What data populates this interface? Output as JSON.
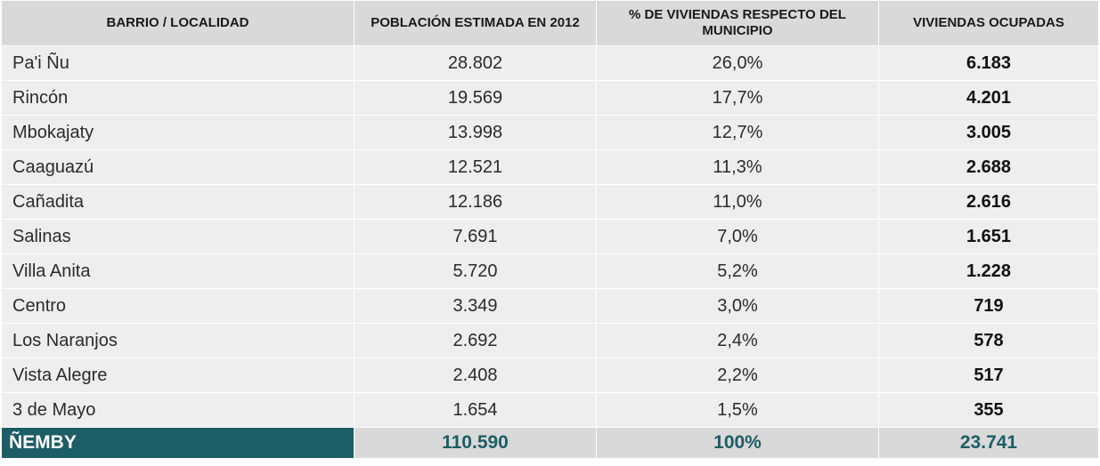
{
  "table": {
    "headers": [
      "BARRIO / LOCALIDAD",
      "POBLACIÓN ESTIMADA EN 2012",
      "% DE VIVIENDAS RESPECTO DEL MUNICIPIO",
      "VIVIENDAS OCUPADAS"
    ],
    "rows": [
      [
        "Pa'i Ñu",
        "28.802",
        "26,0%",
        "6.183"
      ],
      [
        "Rincón",
        "19.569",
        "17,7%",
        "4.201"
      ],
      [
        "Mbokajaty",
        "13.998",
        "12,7%",
        "3.005"
      ],
      [
        "Caaguazú",
        "12.521",
        "11,3%",
        "2.688"
      ],
      [
        "Cañadita",
        "12.186",
        "11,0%",
        "2.616"
      ],
      [
        "Salinas",
        "7.691",
        "7,0%",
        "1.651"
      ],
      [
        "Villa Anita",
        "5.720",
        "5,2%",
        "1.228"
      ],
      [
        "Centro",
        "3.349",
        "3,0%",
        "719"
      ],
      [
        "Los Naranjos",
        "2.692",
        "2,4%",
        "578"
      ],
      [
        "Vista Alegre",
        "2.408",
        "2,2%",
        "517"
      ],
      [
        "3 de Mayo",
        "1.654",
        "1,5%",
        "355"
      ]
    ],
    "total": [
      "ÑEMBY",
      "110.590",
      "100%",
      "23.741"
    ]
  },
  "colors": {
    "header_bg": "#d9d9d9",
    "row_bg": "#eeeeee",
    "total_accent": "#1d5d66"
  }
}
